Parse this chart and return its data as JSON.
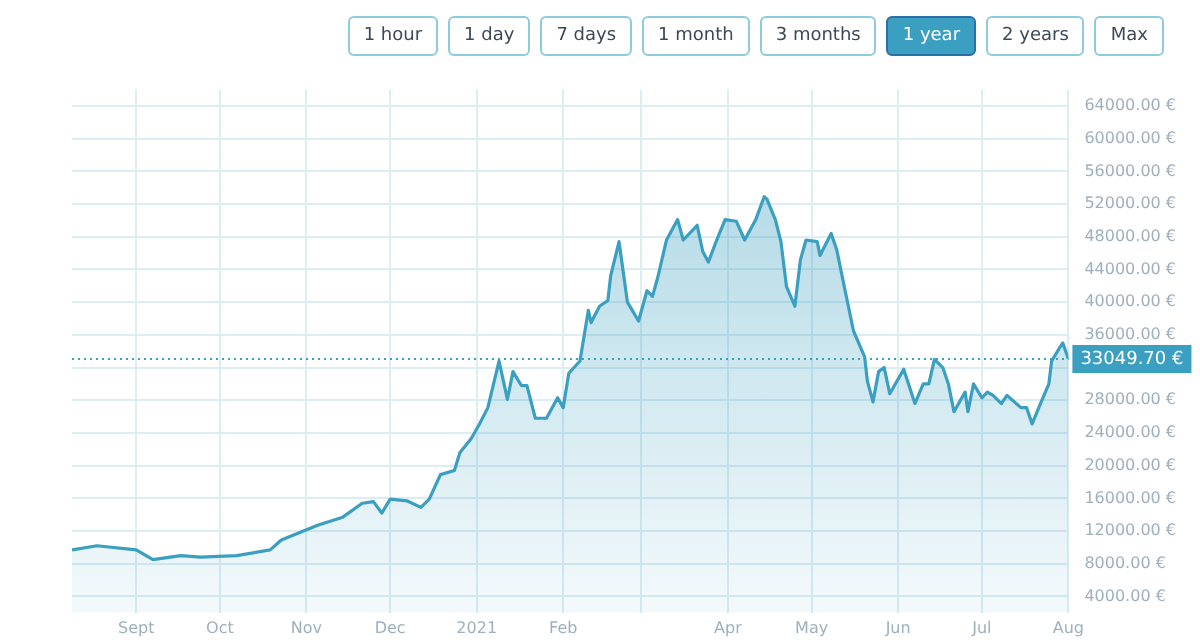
{
  "chart_data": {
    "type": "area",
    "annotations": [
      "1 hour",
      "1 day",
      "7 days",
      "1 month",
      "3 months",
      "1 year",
      "2 years",
      "Max"
    ],
    "x": [
      "2020-08-09",
      "2020-08-18",
      "2020-09-01",
      "2020-09-07",
      "2020-09-17",
      "2020-09-24",
      "2020-10-07",
      "2020-10-19",
      "2020-10-23",
      "2020-11-05",
      "2020-11-14",
      "2020-11-21",
      "2020-11-25",
      "2020-11-28",
      "2020-12-01",
      "2020-12-07",
      "2020-12-12",
      "2020-12-15",
      "2020-12-19",
      "2020-12-24",
      "2020-12-26",
      "2020-12-30",
      "2021-01-02",
      "2021-01-05",
      "2021-01-09",
      "2021-01-12",
      "2021-01-14",
      "2021-01-17",
      "2021-01-19",
      "2021-01-22",
      "2021-01-26",
      "2021-01-30",
      "2021-02-01",
      "2021-02-03",
      "2021-02-07",
      "2021-02-10",
      "2021-02-11",
      "2021-02-14",
      "2021-02-17",
      "2021-02-18",
      "2021-02-21",
      "2021-02-24",
      "2021-02-28",
      "2021-03-03",
      "2021-03-05",
      "2021-03-07",
      "2021-03-10",
      "2021-03-14",
      "2021-03-16",
      "2021-03-21",
      "2021-03-23",
      "2021-03-25",
      "2021-03-28",
      "2021-03-31",
      "2021-04-04",
      "2021-04-07",
      "2021-04-11",
      "2021-04-14",
      "2021-04-15",
      "2021-04-18",
      "2021-04-20",
      "2021-04-22",
      "2021-04-25",
      "2021-04-27",
      "2021-04-29",
      "2021-05-03",
      "2021-05-04",
      "2021-05-08",
      "2021-05-10",
      "2021-05-13",
      "2021-05-16",
      "2021-05-20",
      "2021-05-21",
      "2021-05-23",
      "2021-05-25",
      "2021-05-27",
      "2021-05-29",
      "2021-06-03",
      "2021-06-07",
      "2021-06-10",
      "2021-06-12",
      "2021-06-14",
      "2021-06-17",
      "2021-06-19",
      "2021-06-21",
      "2021-06-25",
      "2021-06-26",
      "2021-06-28",
      "2021-07-01",
      "2021-07-03",
      "2021-07-05",
      "2021-07-08",
      "2021-07-10",
      "2021-07-15",
      "2021-07-17",
      "2021-07-19",
      "2021-07-22",
      "2021-07-25",
      "2021-07-26",
      "2021-07-29",
      "2021-07-30",
      "2021-08-01"
    ],
    "series": [
      {
        "color": "#3a9fc0",
        "values": [
          9700,
          10200,
          9700,
          8500,
          9000,
          8800,
          9000,
          9700,
          10900,
          12700,
          13700,
          15400,
          15600,
          14200,
          15900,
          15700,
          14900,
          15900,
          18900,
          19400,
          21600,
          23300,
          25100,
          27100,
          32800,
          28100,
          31500,
          29800,
          29800,
          25800,
          25800,
          28300,
          27100,
          31300,
          32800,
          39000,
          37500,
          39500,
          40200,
          43200,
          47400,
          40000,
          37700,
          41400,
          40700,
          43200,
          47600,
          50100,
          47600,
          49400,
          46200,
          44900,
          47600,
          50100,
          49900,
          47600,
          50100,
          52900,
          52600,
          50100,
          47400,
          41900,
          39500,
          45200,
          47600,
          47400,
          45700,
          48400,
          46400,
          41400,
          36500,
          33300,
          30300,
          27800,
          31500,
          32000,
          28800,
          31800,
          27600,
          30000,
          30000,
          33000,
          32000,
          30000,
          26600,
          29000,
          26600,
          30000,
          28300,
          29000,
          28600,
          27600,
          28600,
          27100,
          27100,
          25100,
          27600,
          30000,
          32800,
          34500,
          35000,
          33049.7
        ]
      }
    ],
    "xlim": [
      "2020-08-09",
      "2021-08-01"
    ],
    "xticks": [
      {
        "value": "2020-09-01",
        "label": "Sept"
      },
      {
        "value": "2020-10-01",
        "label": "Oct"
      },
      {
        "value": "2020-11-01",
        "label": "Nov"
      },
      {
        "value": "2020-12-01",
        "label": "Dec"
      },
      {
        "value": "2021-01-01",
        "label": "2021"
      },
      {
        "value": "2021-02-01",
        "label": "Feb"
      },
      {
        "value": "2021-03-01",
        "label": null
      },
      {
        "value": "2021-04-01",
        "label": "Apr"
      },
      {
        "value": "2021-05-01",
        "label": "May"
      },
      {
        "value": "2021-06-01",
        "label": "Jun"
      },
      {
        "value": "2021-07-01",
        "label": "Jul"
      },
      {
        "value": "2021-08-01",
        "label": "Aug"
      }
    ],
    "ylim": [
      2000,
      66000
    ],
    "yticks": [
      {
        "value": 4000,
        "label": "4000.00 €"
      },
      {
        "value": 8000,
        "label": "8000.00 €"
      },
      {
        "value": 12000,
        "label": "12000.00 €"
      },
      {
        "value": 16000,
        "label": "16000.00 €"
      },
      {
        "value": 20000,
        "label": "20000.00 €"
      },
      {
        "value": 24000,
        "label": "24000.00 €"
      },
      {
        "value": 28000,
        "label": "28000.00 €"
      },
      {
        "value": 32000,
        "label": null
      },
      {
        "value": 36000,
        "label": "36000.00 €"
      },
      {
        "value": 40000,
        "label": "40000.00 €"
      },
      {
        "value": 44000,
        "label": "44000.00 €"
      },
      {
        "value": 48000,
        "label": "48000.00 €"
      },
      {
        "value": 52000,
        "label": "52000.00 €"
      },
      {
        "value": 56000,
        "label": "56000.00 €"
      },
      {
        "value": 60000,
        "label": "60000.00 €"
      },
      {
        "value": 64000,
        "label": "64000.00 €"
      }
    ],
    "ref_lines": [
      {
        "axis": "y",
        "value": 33049.7,
        "label": "33049.70 €",
        "color": "#3a9fc0",
        "line_style": "dotted"
      }
    ],
    "grid": true
  }
}
